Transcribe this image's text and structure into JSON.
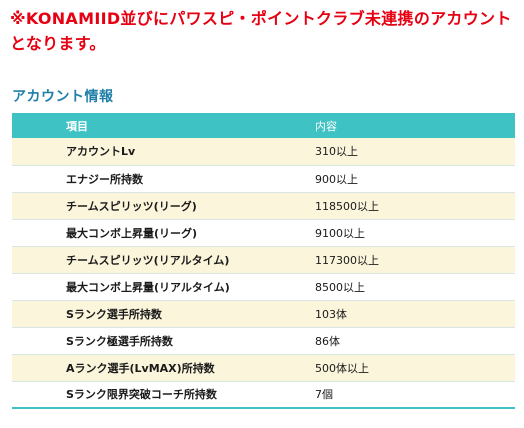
{
  "notice": {
    "text": "※KONAMIID並びにパワスピ・ポイントクラブ未連携のアカウントとなります。"
  },
  "section": {
    "title": "アカウント情報"
  },
  "table": {
    "headers": {
      "item": "項目",
      "value": "内容"
    },
    "rows": [
      {
        "item": "アカウントLv",
        "value": "310以上"
      },
      {
        "item": "エナジー所持数",
        "value": "900以上"
      },
      {
        "item": "チームスピリッツ(リーグ)",
        "value": "118500以上"
      },
      {
        "item": "最大コンボ上昇量(リーグ)",
        "value": "9100以上"
      },
      {
        "item": "チームスピリッツ(リアルタイム)",
        "value": "117300以上"
      },
      {
        "item": "最大コンボ上昇量(リアルタイム)",
        "value": "8500以上"
      },
      {
        "item": "Sランク選手所持数",
        "value": "103体"
      },
      {
        "item": "Sランク極選手所持数",
        "value": "86体"
      },
      {
        "item": "Aランク選手(LvMAX)所持数",
        "value": "500体以上"
      },
      {
        "item": "Sランク限界突破コーチ所持数",
        "value": "7個"
      }
    ]
  }
}
